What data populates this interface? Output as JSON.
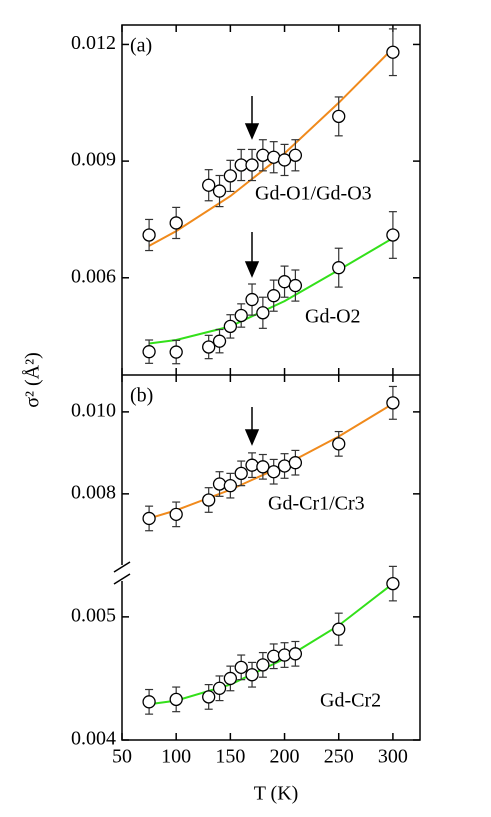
{
  "chart_data": [
    {
      "type": "scatter",
      "label": "(a)",
      "y_label": "σ² (Å²)",
      "xlim": [
        50,
        325
      ],
      "xticks": [
        50,
        100,
        150,
        200,
        250,
        300
      ],
      "ylim": [
        0.0035,
        0.0125
      ],
      "yticks": [
        0.006,
        0.009,
        0.012
      ],
      "series": [
        {
          "name": "Gd-O1/Gd-O3",
          "color": "#f08a1c",
          "x": [
            75,
            100,
            130,
            140,
            150,
            160,
            170,
            180,
            190,
            200,
            210,
            250,
            300
          ],
          "values": [
            0.0071,
            0.00741,
            0.00838,
            0.00823,
            0.00862,
            0.0089,
            0.0089,
            0.00915,
            0.0091,
            0.00903,
            0.00915,
            0.01015,
            0.0118
          ],
          "errors": [
            0.0004,
            0.0004,
            0.0004,
            0.0004,
            0.0004,
            0.0004,
            0.0004,
            0.0004,
            0.0004,
            0.0004,
            0.0004,
            0.0005,
            0.0006
          ],
          "fit_x": [
            75,
            100,
            150,
            200,
            250,
            300
          ],
          "fit": [
            0.00682,
            0.0072,
            0.0081,
            0.0092,
            0.0105,
            0.0119
          ]
        },
        {
          "name": "Gd-O2",
          "color": "#33e01a",
          "x": [
            75,
            100,
            130,
            140,
            150,
            160,
            170,
            180,
            190,
            200,
            210,
            250,
            300
          ],
          "values": [
            0.0041,
            0.00409,
            0.00422,
            0.00437,
            0.00475,
            0.00503,
            0.00544,
            0.0051,
            0.00554,
            0.0059,
            0.0058,
            0.00626,
            0.0071
          ],
          "errors": [
            0.0003,
            0.0003,
            0.0003,
            0.0003,
            0.0003,
            0.0003,
            0.0004,
            0.0004,
            0.0004,
            0.0004,
            0.0004,
            0.0005,
            0.0006
          ],
          "fit_x": [
            75,
            100,
            150,
            200,
            250,
            300
          ],
          "fit": [
            0.00431,
            0.0044,
            0.00475,
            0.0054,
            0.0062,
            0.00702
          ]
        }
      ]
    },
    {
      "type": "scatter",
      "label": "(b)",
      "xlim": [
        50,
        325
      ],
      "xticks": [
        50,
        100,
        150,
        200,
        250,
        300
      ],
      "ylim": [
        0.00602,
        0.0109
      ],
      "yticks": [
        0.008,
        {
          "value": 0.01,
          "label": "0.010"
        }
      ],
      "series": [
        {
          "name": "Gd-Cr1/Cr3",
          "color": "#f08a1c",
          "x": [
            75,
            100,
            130,
            140,
            150,
            160,
            170,
            180,
            190,
            200,
            210,
            250,
            300
          ],
          "values": [
            0.0074,
            0.0075,
            0.00785,
            0.00824,
            0.0082,
            0.0085,
            0.0087,
            0.00866,
            0.00854,
            0.00868,
            0.00876,
            0.00922,
            0.01022
          ],
          "errors": [
            0.0003,
            0.0003,
            0.0003,
            0.0003,
            0.0003,
            0.0003,
            0.0003,
            0.0003,
            0.0003,
            0.0003,
            0.0003,
            0.0003,
            0.0004
          ],
          "fit_x": [
            75,
            100,
            150,
            200,
            250,
            300
          ],
          "fit": [
            0.0074,
            0.0076,
            0.0081,
            0.0087,
            0.0094,
            0.0102
          ]
        }
      ]
    },
    {
      "type": "scatter",
      "x_label": "T (K)",
      "xlim": [
        50,
        325
      ],
      "xticks": [
        50,
        100,
        150,
        200,
        250,
        300
      ],
      "ylim": [
        0.004,
        0.00534
      ],
      "yticks": [
        0.004,
        0.005
      ],
      "series": [
        {
          "name": "Gd-Cr2",
          "color": "#33e01a",
          "x": [
            75,
            100,
            130,
            140,
            150,
            160,
            170,
            180,
            190,
            200,
            210,
            250,
            300
          ],
          "values": [
            0.00431,
            0.00433,
            0.00435,
            0.00442,
            0.0045,
            0.00459,
            0.00453,
            0.00461,
            0.00468,
            0.00469,
            0.0047,
            0.0049,
            0.00527
          ],
          "errors": [
            0.0001,
            0.0001,
            0.0001,
            0.0001,
            0.0001,
            0.0001,
            0.0001,
            0.0001,
            0.0001,
            0.0001,
            0.0001,
            0.00013,
            0.00014
          ],
          "fit_x": [
            75,
            100,
            150,
            200,
            250,
            300
          ],
          "fit": [
            0.00429,
            0.00432,
            0.00445,
            0.00466,
            0.00493,
            0.00527
          ]
        }
      ]
    }
  ]
}
